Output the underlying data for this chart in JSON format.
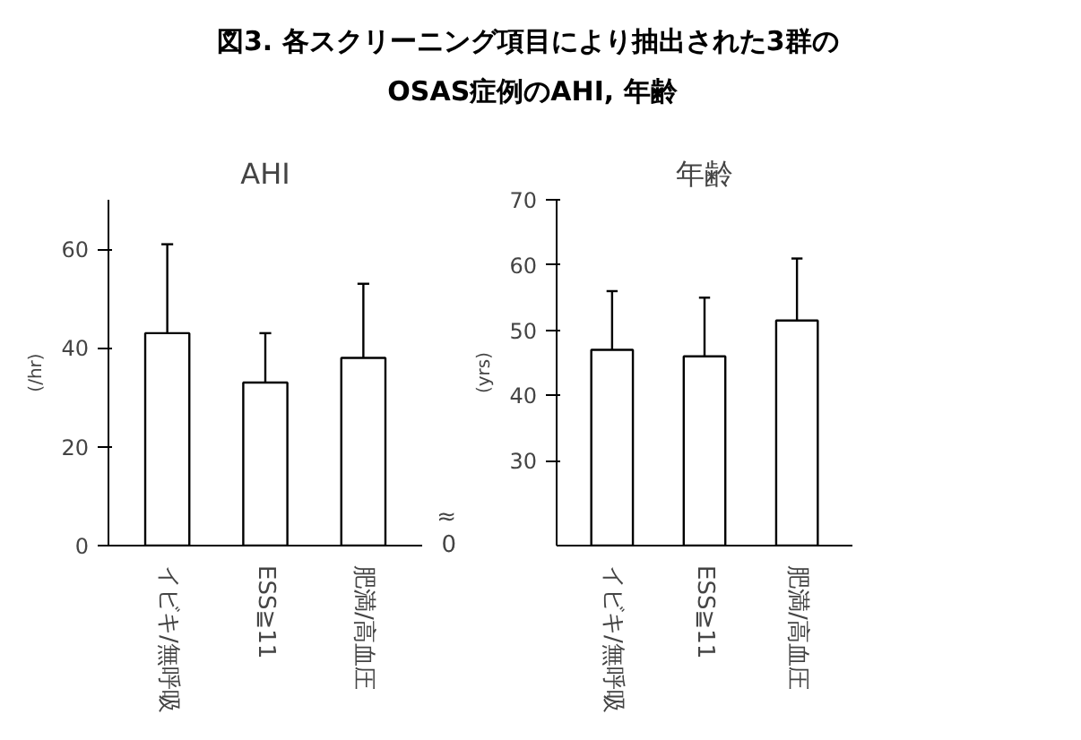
{
  "chart_data": [
    {
      "type": "other",
      "title": "図3.  各スクリーニング項目により抽出された3群の\nOSAS症例のAHI, 年齢"
    },
    {
      "type": "bar",
      "title": "AHI",
      "ylabel": "(/hr)",
      "categories": [
        "イビキ/無呼吸",
        "ESS≧11",
        "肥満/高血圧"
      ],
      "values": [
        43,
        33,
        38
      ],
      "errors": [
        [
          43,
          61
        ],
        [
          33,
          43
        ],
        [
          38,
          53
        ]
      ],
      "color": "#ffffff",
      "ylim": [
        0,
        70
      ],
      "yticks": [
        0,
        20,
        40,
        60
      ],
      "grid": false
    },
    {
      "type": "bar",
      "title": "年齢",
      "ylabel": "(yrs)",
      "categories": [
        "イビキ/無呼吸",
        "ESS≧11",
        "肥満/高血圧"
      ],
      "values": [
        47,
        46,
        51.5
      ],
      "errors": [
        [
          47,
          56
        ],
        [
          46,
          55
        ],
        [
          51.5,
          61
        ]
      ],
      "color": "#ffffff",
      "ylim": [
        17,
        70
      ],
      "yticks": [
        30,
        40,
        50,
        60,
        70
      ],
      "annotations": [
        "0",
        "≈"
      ],
      "grid": false
    }
  ]
}
